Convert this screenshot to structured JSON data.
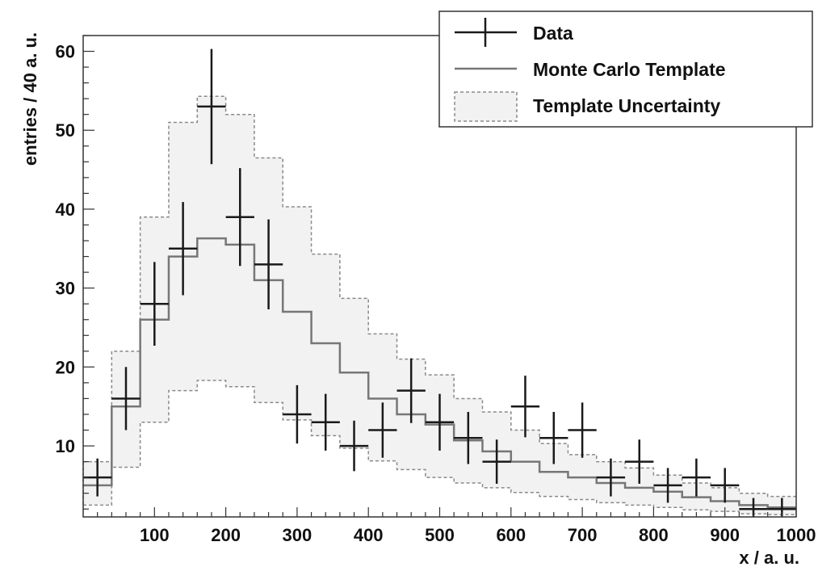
{
  "chart_data": {
    "type": "histogram",
    "xlabel": "x / a. u.",
    "ylabel": "entries / 40 a. u.",
    "xlim": [
      0,
      1000
    ],
    "ylim": [
      1,
      62
    ],
    "x_ticks": [
      100,
      200,
      300,
      400,
      500,
      600,
      700,
      800,
      900,
      1000
    ],
    "y_ticks": [
      10,
      20,
      30,
      40,
      50,
      60
    ],
    "bin_edges": [
      0,
      40,
      80,
      120,
      160,
      200,
      240,
      280,
      320,
      360,
      400,
      440,
      480,
      520,
      560,
      600,
      640,
      680,
      720,
      760,
      800,
      840,
      880,
      920,
      960,
      1000
    ],
    "grid": false,
    "legend_position": "top-right",
    "legend": [
      "Data",
      "Monte Carlo Template",
      "Template Uncertainty"
    ],
    "series": [
      {
        "name": "Data",
        "style": "points-with-error-bars",
        "color": "#1a1a1a",
        "x": [
          20,
          60,
          100,
          140,
          180,
          220,
          260,
          300,
          340,
          380,
          420,
          460,
          500,
          540,
          580,
          620,
          660,
          700,
          740,
          780,
          820,
          860,
          900,
          940,
          980
        ],
        "values": [
          6,
          16,
          28,
          35,
          53,
          39,
          33,
          14,
          13,
          10,
          12,
          17,
          13,
          11,
          8,
          15,
          11,
          12,
          6,
          8,
          5,
          6,
          5,
          2,
          2
        ],
        "errors": [
          2.4,
          4.0,
          5.3,
          5.9,
          7.3,
          6.2,
          5.7,
          3.7,
          3.6,
          3.2,
          3.5,
          4.1,
          3.6,
          3.3,
          2.8,
          3.9,
          3.3,
          3.5,
          2.4,
          2.8,
          2.2,
          2.4,
          2.2,
          1.4,
          1.4
        ]
      },
      {
        "name": "Monte Carlo Template",
        "style": "step",
        "color": "#777777",
        "values": [
          5,
          15,
          26,
          34,
          36.3,
          35.5,
          31,
          27,
          23,
          19.3,
          16,
          14,
          12.7,
          10.7,
          9.3,
          8,
          6.7,
          6,
          5.3,
          4.7,
          4.2,
          3.5,
          3,
          2.5,
          2.2
        ]
      },
      {
        "name": "Template Uncertainty",
        "style": "band",
        "fill": "#f2f2f2",
        "border": "#8a8a8a",
        "upper": [
          8,
          22,
          39,
          51,
          54.3,
          52,
          46.5,
          40.3,
          34.3,
          28.7,
          24.2,
          21,
          19,
          16,
          14.3,
          12,
          10.3,
          8.9,
          8,
          7.2,
          6.3,
          5.3,
          4.7,
          4,
          3.6
        ],
        "lower": [
          2.5,
          7.3,
          13,
          17,
          18.3,
          17.5,
          15.5,
          13.3,
          11.3,
          9.7,
          8.1,
          7,
          6,
          5.3,
          4.7,
          4.1,
          3.6,
          3.2,
          2.8,
          2.5,
          2.2,
          1.9,
          1.7,
          1.4,
          1.3
        ]
      }
    ]
  }
}
